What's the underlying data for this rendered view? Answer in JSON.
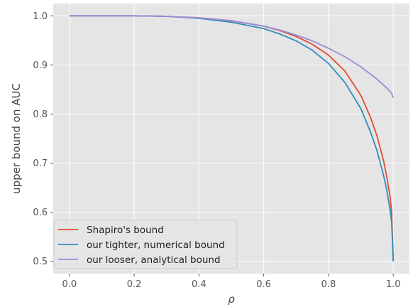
{
  "chart_data": {
    "type": "line",
    "xlabel": "ρ",
    "ylabel": "upper bound on AUC",
    "xlim": [
      -0.05,
      1.05
    ],
    "ylim": [
      0.475,
      1.025
    ],
    "xticks": [
      0.0,
      0.2,
      0.4,
      0.6,
      0.8,
      1.0
    ],
    "xtick_labels": [
      "0.0",
      "0.2",
      "0.4",
      "0.6",
      "0.8",
      "1.0"
    ],
    "yticks": [
      0.5,
      0.6,
      0.7,
      0.8,
      0.9,
      1.0
    ],
    "ytick_labels": [
      "0.5",
      "0.6",
      "0.7",
      "0.8",
      "0.9",
      "1.0"
    ],
    "grid": true,
    "legend_position": "bottom-left",
    "x": [
      0.0,
      0.1,
      0.2,
      0.3,
      0.4,
      0.5,
      0.6,
      0.65,
      0.7,
      0.75,
      0.8,
      0.85,
      0.9,
      0.93,
      0.95,
      0.97,
      0.98,
      0.99,
      0.995,
      1.0
    ],
    "series": [
      {
        "name": "Shapiro's bound",
        "color": "#e24a33",
        "values": [
          1.0,
          1.0,
          1.0,
          0.999,
          0.996,
          0.99,
          0.979,
          0.97,
          0.958,
          0.942,
          0.92,
          0.888,
          0.838,
          0.793,
          0.755,
          0.705,
          0.672,
          0.633,
          0.6,
          0.5
        ]
      },
      {
        "name": "our tighter, numerical bound",
        "color": "#348abd",
        "values": [
          1.0,
          1.0,
          1.0,
          0.999,
          0.995,
          0.987,
          0.974,
          0.963,
          0.949,
          0.93,
          0.903,
          0.865,
          0.811,
          0.763,
          0.725,
          0.675,
          0.645,
          0.605,
          0.58,
          0.5
        ]
      },
      {
        "name": "our looser, analytical bound",
        "color": "#988ed5",
        "values": [
          1.0,
          1.0,
          1.0,
          0.999,
          0.996,
          0.99,
          0.979,
          0.971,
          0.961,
          0.949,
          0.934,
          0.917,
          0.896,
          0.881,
          0.871,
          0.859,
          0.853,
          0.846,
          0.842,
          0.833
        ]
      }
    ]
  }
}
